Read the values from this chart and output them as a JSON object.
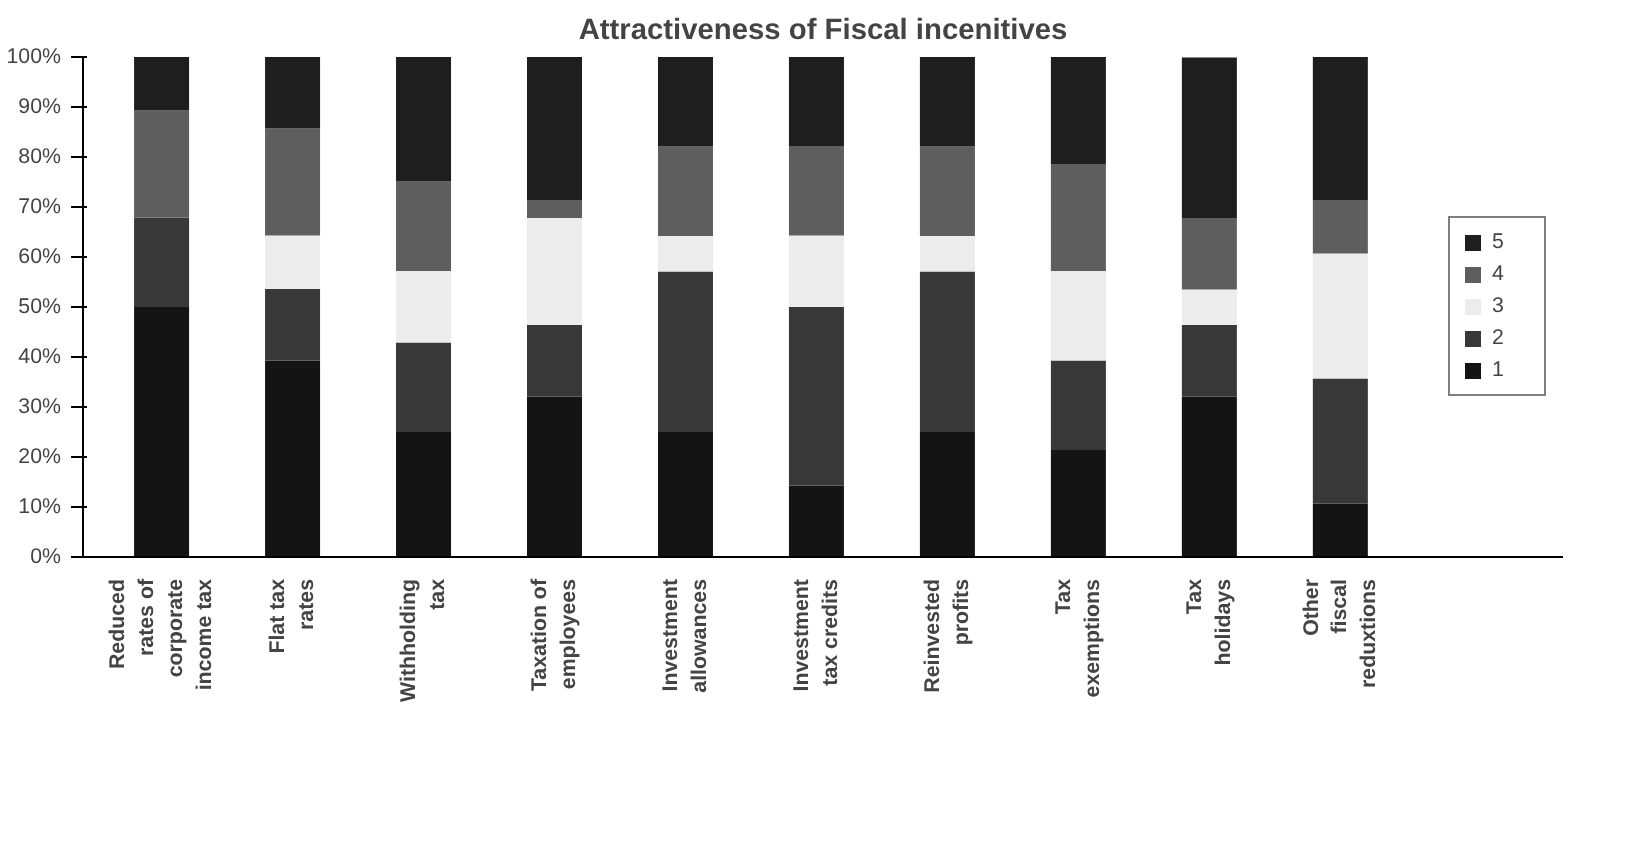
{
  "chart_data": {
    "type": "bar",
    "title": "Attractiveness of Fiscal incenitives",
    "stacked": true,
    "categories": [
      "Reduced rates of corporate income tax",
      "Flat tax rates",
      "Withholding tax",
      "Taxation of employees",
      "Investment allowances",
      "Investment tax credits",
      "Reinvested profits",
      "Tax exemptions",
      "Tax holidays",
      "Other fiscal reduxtions"
    ],
    "series": [
      {
        "name": "1",
        "color": "#141414",
        "values": [
          50,
          39.3,
          25,
          32.1,
          25,
          14.3,
          25,
          21.4,
          32.1,
          10.7
        ]
      },
      {
        "name": "2",
        "color": "#383838",
        "values": [
          17.9,
          14.3,
          17.9,
          14.3,
          32.1,
          35.7,
          32.1,
          17.9,
          14.3,
          25
        ]
      },
      {
        "name": "3",
        "color": "#ececec",
        "values": [
          0,
          10.7,
          14.3,
          21.4,
          7.1,
          14.3,
          7.1,
          17.9,
          7.1,
          25
        ]
      },
      {
        "name": "4",
        "color": "#5e5e5e",
        "values": [
          21.4,
          21.4,
          17.9,
          3.6,
          17.9,
          17.9,
          17.9,
          21.4,
          14.3,
          10.7
        ]
      },
      {
        "name": "5",
        "color": "#1e1e1e",
        "values": [
          10.7,
          14.3,
          25,
          28.6,
          17.9,
          17.9,
          17.9,
          21.4,
          32.1,
          28.6
        ]
      }
    ],
    "ylim": [
      0,
      100
    ],
    "yticks": [
      {
        "value": 0,
        "label": "0%"
      },
      {
        "value": 10,
        "label": "10%"
      },
      {
        "value": 20,
        "label": "20%"
      },
      {
        "value": 30,
        "label": "30%"
      },
      {
        "value": 40,
        "label": "40%"
      },
      {
        "value": 50,
        "label": "50%"
      },
      {
        "value": 60,
        "label": "60%"
      },
      {
        "value": 70,
        "label": "70%"
      },
      {
        "value": 80,
        "label": "80%"
      },
      {
        "value": 90,
        "label": "90%"
      },
      {
        "value": 100,
        "label": "100%"
      }
    ],
    "grid": false,
    "legend": "right"
  }
}
